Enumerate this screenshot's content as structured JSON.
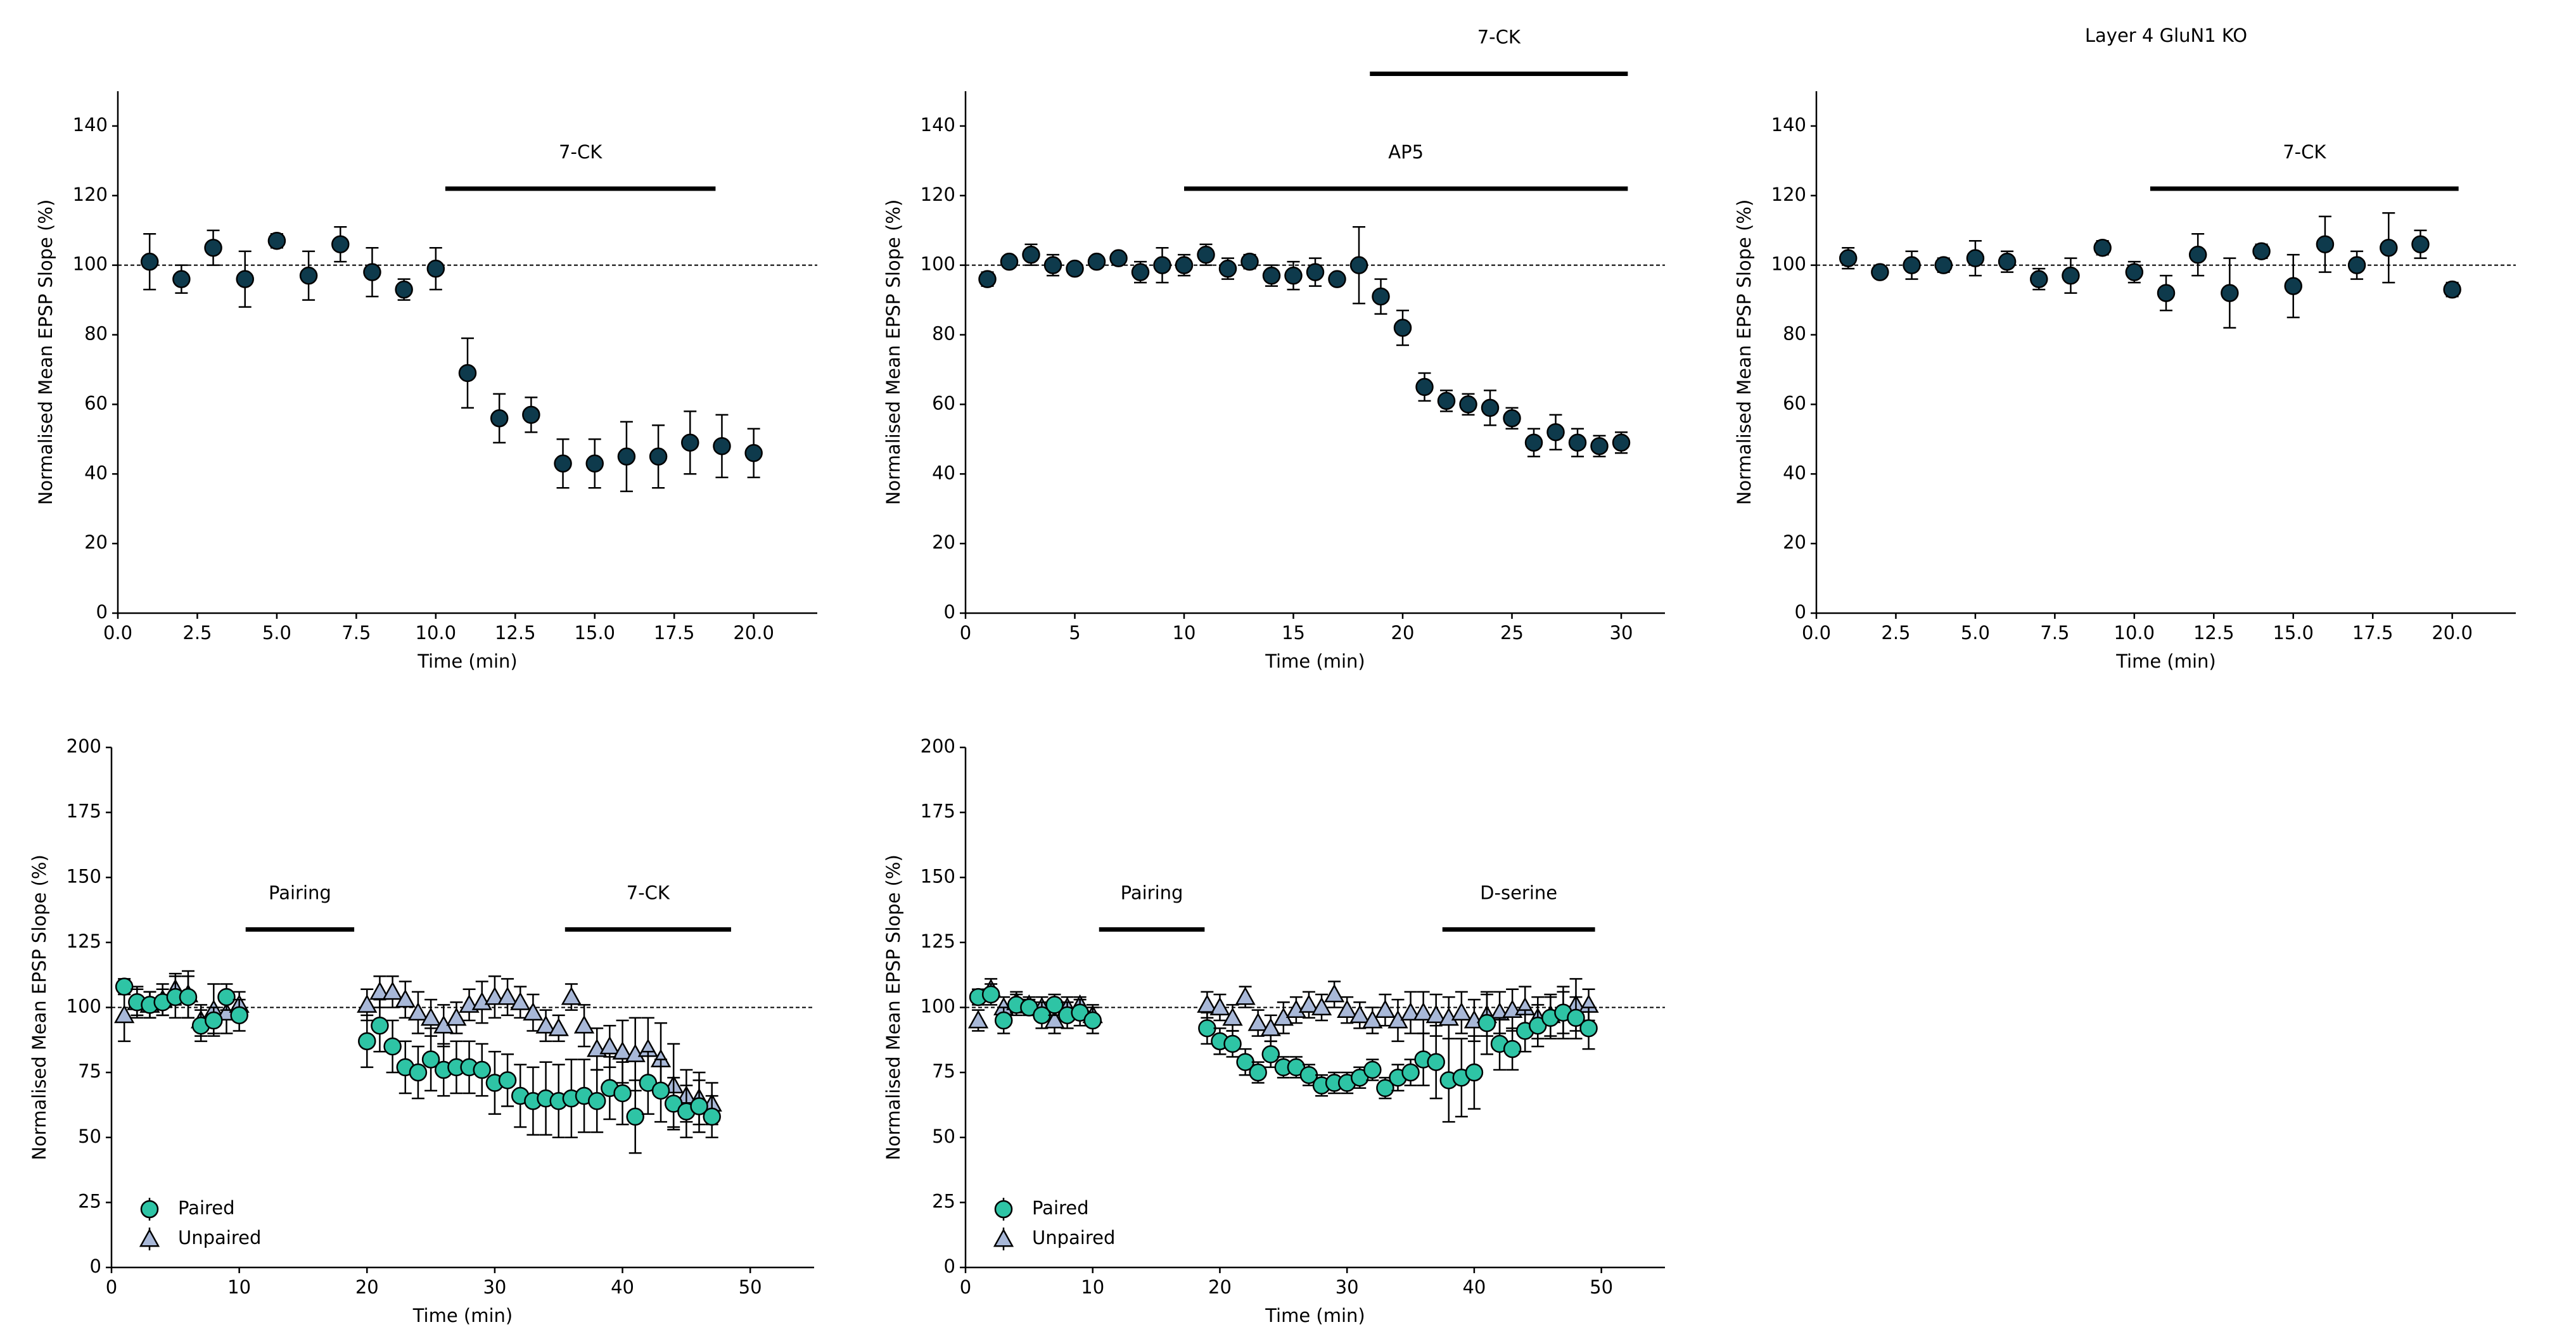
{
  "chart_data": [
    {
      "type": "scatter",
      "xlabel": "Time (min)",
      "ylabel": "Normalised Mean EPSP Slope (%)",
      "x": [
        1,
        2,
        3,
        4,
        5,
        6,
        7,
        8,
        9,
        10,
        11,
        12,
        13,
        14,
        15,
        16,
        17,
        18,
        19,
        20
      ],
      "series": [
        {
          "color": "#0e3a4c",
          "marker": "o",
          "values": [
            101,
            96,
            105,
            96,
            107,
            97,
            106,
            98,
            93,
            99,
            69,
            56,
            57,
            43,
            43,
            45,
            45,
            49,
            48,
            46
          ],
          "errors": [
            8,
            4,
            5,
            8,
            2,
            7,
            5,
            7,
            3,
            6,
            10,
            7,
            5,
            7,
            7,
            10,
            9,
            9,
            9,
            7
          ]
        }
      ],
      "xlim": [
        0,
        22
      ],
      "xticks": [
        {
          "value": 0,
          "label": "0.0"
        },
        2.5,
        {
          "value": 5,
          "label": "5.0"
        },
        7.5,
        {
          "value": 10,
          "label": "10.0"
        },
        12.5,
        {
          "value": 15,
          "label": "15.0"
        },
        17.5,
        {
          "value": 20,
          "label": "20.0"
        }
      ],
      "ylim": [
        0,
        150
      ],
      "yticks": [
        0,
        20,
        40,
        60,
        80,
        100,
        120,
        140
      ],
      "hline": 100,
      "annotations": [
        {
          "label": "7-CK",
          "x": [
            10.3,
            18.8
          ],
          "y": 122
        }
      ]
    },
    {
      "type": "scatter",
      "xlabel": "Time (min)",
      "ylabel": "Normalised Mean EPSP Slope (%)",
      "x": [
        1,
        2,
        3,
        4,
        5,
        6,
        7,
        8,
        9,
        10,
        11,
        12,
        13,
        14,
        15,
        16,
        17,
        18,
        19,
        20,
        21,
        22,
        23,
        24,
        25,
        26,
        27,
        28,
        29,
        30
      ],
      "series": [
        {
          "color": "#0e3a4c",
          "marker": "o",
          "values": [
            96,
            101,
            103,
            100,
            99,
            101,
            102,
            98,
            100,
            100,
            103,
            99,
            101,
            97,
            97,
            98,
            96,
            100,
            91,
            82,
            65,
            61,
            60,
            59,
            56,
            49,
            52,
            49,
            48,
            49
          ],
          "errors": [
            2,
            1,
            3,
            3,
            1,
            1,
            1,
            3,
            5,
            3,
            3,
            3,
            2,
            3,
            4,
            4,
            1,
            11,
            5,
            5,
            4,
            3,
            3,
            5,
            3,
            4,
            5,
            4,
            3,
            3
          ]
        }
      ],
      "xlim": [
        0,
        32
      ],
      "xticks": [
        0,
        5,
        10,
        15,
        20,
        25,
        30
      ],
      "ylim": [
        0,
        150
      ],
      "yticks": [
        0,
        20,
        40,
        60,
        80,
        100,
        120,
        140
      ],
      "hline": 100,
      "annotations": [
        {
          "label": "AP5",
          "x": [
            10,
            30.3
          ],
          "y": 122
        },
        {
          "label": "7-CK",
          "x": [
            18.5,
            30.3
          ],
          "y": 155
        }
      ]
    },
    {
      "type": "scatter",
      "title": "Layer 4 GluN1 KO",
      "xlabel": "Time (min)",
      "ylabel": "Normalised Mean EPSP Slope (%)",
      "x": [
        1,
        2,
        3,
        4,
        5,
        6,
        7,
        8,
        9,
        10,
        11,
        12,
        13,
        14,
        15,
        16,
        17,
        18,
        19,
        20
      ],
      "series": [
        {
          "color": "#0e3a4c",
          "marker": "o",
          "values": [
            102,
            98,
            100,
            100,
            102,
            101,
            96,
            97,
            105,
            98,
            92,
            103,
            92,
            104,
            94,
            106,
            100,
            105,
            106,
            93
          ],
          "errors": [
            3,
            1,
            4,
            2,
            5,
            3,
            3,
            5,
            2,
            3,
            5,
            6,
            10,
            2,
            9,
            8,
            4,
            10,
            4,
            2
          ]
        }
      ],
      "xlim": [
        0,
        22
      ],
      "xticks": [
        {
          "value": 0,
          "label": "0.0"
        },
        2.5,
        {
          "value": 5,
          "label": "5.0"
        },
        7.5,
        {
          "value": 10,
          "label": "10.0"
        },
        12.5,
        {
          "value": 15,
          "label": "15.0"
        },
        17.5,
        {
          "value": 20,
          "label": "20.0"
        }
      ],
      "ylim": [
        0,
        150
      ],
      "yticks": [
        0,
        20,
        40,
        60,
        80,
        100,
        120,
        140
      ],
      "hline": 100,
      "annotations": [
        {
          "label": "7-CK",
          "x": [
            10.5,
            20.2
          ],
          "y": 122
        }
      ]
    },
    {
      "type": "scatter",
      "xlabel": "Time (min)",
      "ylabel": "Normalised Mean EPSP Slope (%)",
      "legend": "lower left",
      "x": [
        1,
        2,
        3,
        4,
        5,
        6,
        7,
        8,
        9,
        10,
        20,
        21,
        22,
        23,
        24,
        25,
        26,
        27,
        28,
        29,
        30,
        31,
        32,
        33,
        34,
        35,
        36,
        37,
        38,
        39,
        40,
        41,
        42,
        43,
        44,
        45,
        46,
        47
      ],
      "series": [
        {
          "name": "Unpaired",
          "color": "#a8b8d8",
          "marker": "^",
          "values": [
            97,
            102,
            101,
            103,
            107,
            105,
            95,
            99,
            98,
            101,
            101,
            106,
            106,
            103,
            98,
            96,
            93,
            96,
            101,
            102,
            104,
            104,
            102,
            98,
            93,
            92,
            104,
            93,
            84,
            85,
            83,
            82,
            84,
            80,
            70,
            66,
            65,
            63
          ],
          "errors": [
            10,
            6,
            5,
            6,
            6,
            9,
            6,
            10,
            8,
            5,
            6,
            6,
            6,
            7,
            8,
            7,
            8,
            6,
            6,
            8,
            8,
            7,
            6,
            7,
            6,
            5,
            5,
            8,
            8,
            8,
            12,
            14,
            12,
            14,
            16,
            10,
            10,
            8
          ]
        },
        {
          "name": "Paired",
          "color": "#2ec4a5",
          "marker": "o",
          "values": [
            108,
            102,
            101,
            102,
            104,
            104,
            93,
            95,
            104,
            97,
            87,
            93,
            85,
            77,
            75,
            80,
            76,
            77,
            77,
            76,
            71,
            72,
            66,
            64,
            65,
            64,
            65,
            66,
            64,
            69,
            67,
            58,
            71,
            68,
            63,
            60,
            62,
            58
          ],
          "errors": [
            3,
            5,
            5,
            5,
            8,
            8,
            6,
            5,
            5,
            6,
            10,
            10,
            10,
            10,
            10,
            12,
            10,
            10,
            10,
            10,
            12,
            10,
            12,
            13,
            14,
            14,
            15,
            14,
            12,
            12,
            12,
            14,
            12,
            12,
            10,
            10,
            10,
            8
          ]
        }
      ],
      "xlim": [
        0,
        55
      ],
      "xticks": [
        0,
        10,
        20,
        30,
        40,
        50
      ],
      "ylim": [
        0,
        200
      ],
      "yticks": [
        0,
        25,
        50,
        75,
        100,
        125,
        150,
        175,
        200
      ],
      "hline": 100,
      "annotations": [
        {
          "label": "Pairing",
          "x": [
            10.5,
            19
          ],
          "y": 130
        },
        {
          "label": "7-CK",
          "x": [
            35.5,
            48.5
          ],
          "y": 130
        }
      ]
    },
    {
      "type": "scatter",
      "xlabel": "Time (min)",
      "ylabel": "Normalised Mean EPSP Slope (%)",
      "legend": "lower left",
      "x": [
        1,
        2,
        3,
        4,
        5,
        6,
        7,
        8,
        9,
        10,
        19,
        20,
        21,
        22,
        23,
        24,
        25,
        26,
        27,
        28,
        29,
        30,
        31,
        32,
        33,
        34,
        35,
        36,
        37,
        38,
        39,
        40,
        41,
        42,
        43,
        44,
        45,
        46,
        47,
        48,
        49
      ],
      "series": [
        {
          "name": "Unpaired",
          "color": "#a8b8d8",
          "marker": "^",
          "values": [
            95,
            107,
            100,
            102,
            101,
            100,
            95,
            100,
            101,
            97,
            101,
            100,
            96,
            104,
            94,
            92,
            96,
            99,
            101,
            100,
            105,
            99,
            97,
            95,
            99,
            95,
            98,
            98,
            97,
            96,
            98,
            95,
            97,
            98,
            99,
            100,
            96,
            97,
            98,
            101,
            101
          ],
          "errors": [
            4,
            4,
            4,
            4,
            3,
            4,
            5,
            4,
            3,
            4,
            5,
            5,
            5,
            4,
            5,
            5,
            6,
            5,
            5,
            5,
            5,
            5,
            5,
            5,
            6,
            8,
            8,
            8,
            8,
            8,
            8,
            8,
            8,
            8,
            8,
            8,
            8,
            8,
            10,
            10,
            6
          ]
        },
        {
          "name": "Paired",
          "color": "#2ec4a5",
          "marker": "o",
          "values": [
            104,
            105,
            95,
            101,
            100,
            97,
            101,
            97,
            98,
            95,
            92,
            87,
            86,
            79,
            75,
            82,
            77,
            77,
            74,
            70,
            71,
            71,
            73,
            76,
            69,
            73,
            75,
            80,
            79,
            72,
            73,
            75,
            94,
            86,
            84,
            91,
            93,
            96,
            98,
            96,
            92
          ],
          "errors": [
            3,
            4,
            5,
            4,
            3,
            5,
            4,
            5,
            5,
            5,
            6,
            5,
            5,
            5,
            4,
            5,
            4,
            4,
            4,
            4,
            4,
            4,
            4,
            4,
            4,
            5,
            5,
            10,
            14,
            16,
            15,
            14,
            12,
            10,
            8,
            8,
            8,
            8,
            8,
            8,
            8
          ]
        }
      ],
      "xlim": [
        0,
        55
      ],
      "xticks": [
        0,
        10,
        20,
        30,
        40,
        50
      ],
      "ylim": [
        0,
        200
      ],
      "yticks": [
        0,
        25,
        50,
        75,
        100,
        125,
        150,
        175,
        200
      ],
      "hline": 100,
      "annotations": [
        {
          "label": "Pairing",
          "x": [
            10.5,
            18.8
          ],
          "y": 130
        },
        {
          "label": "D-serine",
          "x": [
            37.5,
            49.5
          ],
          "y": 130
        }
      ]
    }
  ]
}
